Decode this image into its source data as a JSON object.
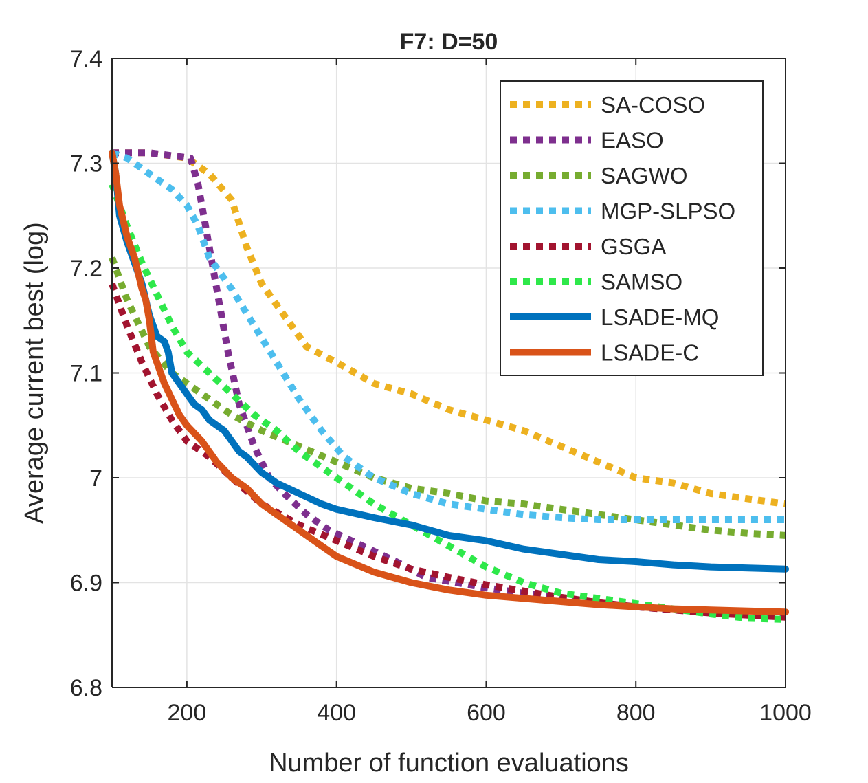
{
  "chart_data": {
    "type": "line",
    "title": "F7: D=50",
    "xlabel": "Number of function evaluations",
    "ylabel": "Average current best (log)",
    "xlim": [
      100,
      1000
    ],
    "ylim": [
      6.8,
      7.4
    ],
    "xticks": [
      200,
      400,
      600,
      800,
      1000
    ],
    "xtick_labels": [
      "200",
      "400",
      "600",
      "800",
      "1000"
    ],
    "yticks": [
      6.8,
      6.9,
      7.0,
      7.1,
      7.2,
      7.3,
      7.4
    ],
    "ytick_labels": [
      "6.8",
      "6.9",
      "7",
      "7.1",
      "7.2",
      "7.3",
      "7.4"
    ],
    "grid": true,
    "legend_position": "top-right",
    "series": [
      {
        "name": "SA-COSO",
        "color": "#EDB120",
        "style": "dotted",
        "x": [
          100,
          150,
          200,
          230,
          260,
          280,
          300,
          330,
          360,
          400,
          450,
          500,
          550,
          600,
          650,
          700,
          750,
          800,
          850,
          900,
          950,
          1000
        ],
        "y": [
          7.31,
          7.31,
          7.305,
          7.29,
          7.265,
          7.22,
          7.185,
          7.155,
          7.125,
          7.11,
          7.09,
          7.08,
          7.065,
          7.055,
          7.045,
          7.03,
          7.015,
          7.0,
          6.995,
          6.985,
          6.98,
          6.975
        ]
      },
      {
        "name": "EASO",
        "color": "#7E2F8E",
        "style": "dotted",
        "x": [
          100,
          150,
          205,
          215,
          225,
          240,
          255,
          270,
          290,
          310,
          330,
          360,
          390,
          420,
          450,
          480,
          520,
          560,
          600,
          650,
          700,
          750,
          800,
          850,
          900,
          950,
          1000
        ],
        "y": [
          7.31,
          7.31,
          7.305,
          7.28,
          7.24,
          7.18,
          7.12,
          7.07,
          7.03,
          7.0,
          6.985,
          6.965,
          6.95,
          6.94,
          6.93,
          6.92,
          6.905,
          6.9,
          6.895,
          6.89,
          6.885,
          6.88,
          6.877,
          6.874,
          6.872,
          6.87,
          6.868
        ]
      },
      {
        "name": "SAGWO",
        "color": "#77AC30",
        "style": "dotted",
        "x": [
          100,
          120,
          150,
          180,
          220,
          260,
          300,
          350,
          400,
          450,
          500,
          550,
          600,
          650,
          700,
          750,
          800,
          850,
          900,
          950,
          1000
        ],
        "y": [
          7.21,
          7.17,
          7.125,
          7.1,
          7.08,
          7.06,
          7.045,
          7.03,
          7.015,
          7.0,
          6.99,
          6.985,
          6.978,
          6.975,
          6.97,
          6.965,
          6.96,
          6.955,
          6.95,
          6.947,
          6.945
        ]
      },
      {
        "name": "MGP-SLPSO",
        "color": "#4DBEEE",
        "style": "dotted",
        "x": [
          100,
          120,
          150,
          180,
          200,
          215,
          230,
          260,
          290,
          320,
          350,
          380,
          410,
          450,
          500,
          550,
          600,
          650,
          700,
          750,
          800,
          850,
          900,
          950,
          1000
        ],
        "y": [
          7.31,
          7.305,
          7.29,
          7.275,
          7.26,
          7.24,
          7.21,
          7.18,
          7.145,
          7.11,
          7.075,
          7.045,
          7.02,
          7.0,
          6.985,
          6.975,
          6.97,
          6.965,
          6.962,
          6.96,
          6.96,
          6.96,
          6.96,
          6.96,
          6.96
        ]
      },
      {
        "name": "GSGA",
        "color": "#A2142F",
        "style": "dotted",
        "x": [
          100,
          120,
          140,
          160,
          180,
          200,
          230,
          260,
          300,
          350,
          400,
          450,
          500,
          550,
          600,
          650,
          700,
          750,
          800,
          850,
          900,
          950,
          1000
        ],
        "y": [
          7.185,
          7.145,
          7.11,
          7.08,
          7.055,
          7.035,
          7.02,
          7.0,
          6.975,
          6.955,
          6.94,
          6.925,
          6.913,
          6.905,
          6.898,
          6.892,
          6.886,
          6.881,
          6.877,
          6.874,
          6.871,
          6.869,
          6.867
        ]
      },
      {
        "name": "SAMSO",
        "color": "#2EE84A",
        "style": "dotted",
        "x": [
          100,
          120,
          140,
          160,
          180,
          200,
          230,
          260,
          290,
          320,
          350,
          400,
          450,
          500,
          550,
          600,
          650,
          700,
          750,
          800,
          850,
          900,
          950,
          1000
        ],
        "y": [
          7.28,
          7.24,
          7.205,
          7.175,
          7.145,
          7.12,
          7.1,
          7.08,
          7.06,
          7.045,
          7.025,
          7.0,
          6.975,
          6.955,
          6.935,
          6.915,
          6.9,
          6.89,
          6.885,
          6.88,
          6.875,
          6.87,
          6.866,
          6.865
        ]
      },
      {
        "name": "LSADE-MQ",
        "color": "#0072BD",
        "style": "solid",
        "x": [
          100,
          105,
          110,
          120,
          130,
          140,
          145,
          150,
          155,
          160,
          170,
          175,
          180,
          190,
          200,
          210,
          220,
          230,
          240,
          250,
          260,
          270,
          280,
          300,
          320,
          350,
          380,
          400,
          450,
          500,
          550,
          600,
          650,
          700,
          750,
          800,
          850,
          900,
          950,
          1000
        ],
        "y": [
          7.31,
          7.29,
          7.25,
          7.225,
          7.205,
          7.185,
          7.17,
          7.155,
          7.145,
          7.135,
          7.13,
          7.12,
          7.1,
          7.09,
          7.08,
          7.07,
          7.065,
          7.055,
          7.05,
          7.045,
          7.035,
          7.025,
          7.02,
          7.005,
          6.995,
          6.985,
          6.975,
          6.97,
          6.962,
          6.955,
          6.945,
          6.94,
          6.932,
          6.927,
          6.922,
          6.92,
          6.917,
          6.915,
          6.914,
          6.913
        ]
      },
      {
        "name": "LSADE-C",
        "color": "#D95319",
        "style": "solid",
        "x": [
          100,
          105,
          110,
          120,
          130,
          140,
          145,
          150,
          155,
          160,
          170,
          180,
          190,
          200,
          220,
          240,
          260,
          280,
          300,
          320,
          350,
          380,
          400,
          450,
          500,
          550,
          600,
          650,
          700,
          750,
          800,
          850,
          900,
          950,
          1000
        ],
        "y": [
          7.31,
          7.29,
          7.26,
          7.23,
          7.21,
          7.18,
          7.17,
          7.15,
          7.12,
          7.11,
          7.09,
          7.075,
          7.06,
          7.05,
          7.035,
          7.015,
          7.0,
          6.99,
          6.975,
          6.965,
          6.95,
          6.935,
          6.925,
          6.91,
          6.9,
          6.893,
          6.888,
          6.885,
          6.882,
          6.879,
          6.877,
          6.875,
          6.874,
          6.873,
          6.872
        ]
      }
    ]
  }
}
